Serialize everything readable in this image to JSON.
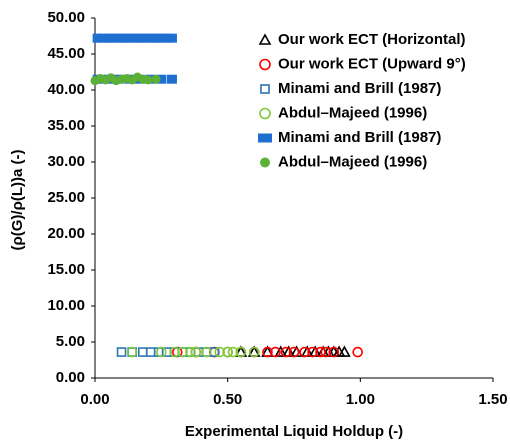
{
  "chart_data": {
    "type": "scatter",
    "x_label": "Experimental Liquid Holdup (-)",
    "y_label": "(ρ(G)/ρ(L))a (-)",
    "xlim": [
      0,
      1.5
    ],
    "ylim": [
      0,
      50
    ],
    "xticks": [
      {
        "value": 0,
        "label": "0.00"
      },
      {
        "value": 0.5,
        "label": "0.50"
      },
      {
        "value": 1,
        "label": "1.00"
      },
      {
        "value": 1.5,
        "label": "1.50"
      }
    ],
    "yticks": [
      {
        "value": 0,
        "label": "0.00"
      },
      {
        "value": 5,
        "label": "5.00"
      },
      {
        "value": 10,
        "label": "10.00"
      },
      {
        "value": 15,
        "label": "15.00"
      },
      {
        "value": 20,
        "label": "20.00"
      },
      {
        "value": 25,
        "label": "25.00"
      },
      {
        "value": 30,
        "label": "30.00"
      },
      {
        "value": 35,
        "label": "35.00"
      },
      {
        "value": 40,
        "label": "40.00"
      },
      {
        "value": 45,
        "label": "45.00"
      },
      {
        "value": 50,
        "label": "50.00"
      }
    ],
    "series": [
      {
        "name": "Our work ECT (Horizontal)",
        "color": "#000000",
        "marker": "triangle",
        "filled": false,
        "x": [
          0.55,
          0.6,
          0.65,
          0.7,
          0.73,
          0.76,
          0.8,
          0.83,
          0.86,
          0.88,
          0.9,
          0.92,
          0.94
        ],
        "values": [
          3.6,
          3.6,
          3.6,
          3.6,
          3.6,
          3.6,
          3.6,
          3.6,
          3.6,
          3.6,
          3.6,
          3.6,
          3.6
        ]
      },
      {
        "name": "Our work ECT (Upward 9°)",
        "color": "#ff0000",
        "marker": "circle",
        "filled": false,
        "x": [
          0.31,
          0.38,
          0.45,
          0.5,
          0.55,
          0.6,
          0.65,
          0.68,
          0.72,
          0.75,
          0.79,
          0.82,
          0.85,
          0.87,
          0.9,
          0.99
        ],
        "values": [
          3.6,
          3.6,
          3.6,
          3.6,
          3.6,
          3.6,
          3.6,
          3.6,
          3.6,
          3.6,
          3.6,
          3.6,
          3.6,
          3.6,
          3.6,
          3.6
        ]
      },
      {
        "name": "Minami and Brill (1987)",
        "color": "#2e75b6",
        "marker": "square",
        "filled": false,
        "x": [
          0.1,
          0.14,
          0.18,
          0.21,
          0.24,
          0.27,
          0.3,
          0.33,
          0.36,
          0.39,
          0.42,
          0.45
        ],
        "values": [
          3.6,
          3.6,
          3.6,
          3.6,
          3.6,
          3.6,
          3.6,
          3.6,
          3.6,
          3.6,
          3.6,
          3.6
        ]
      },
      {
        "name": "Abdul–Majeed (1996)",
        "color": "#7dcc3a",
        "marker": "circle",
        "filled": false,
        "x": [
          0.14,
          0.25,
          0.3,
          0.33,
          0.36,
          0.38,
          0.42,
          0.47,
          0.5,
          0.52,
          0.55,
          0.6
        ],
        "values": [
          3.6,
          3.6,
          3.6,
          3.6,
          3.6,
          3.6,
          3.6,
          3.6,
          3.6,
          3.6,
          3.6,
          3.6
        ]
      },
      {
        "name": "Minami and Brill (1987)",
        "color": "#1f6fd0",
        "marker": "square",
        "filled": true,
        "x": [
          0.01,
          0.03,
          0.05,
          0.07,
          0.09,
          0.11,
          0.13,
          0.15,
          0.17,
          0.19,
          0.21,
          0.23,
          0.25,
          0.27,
          0.29,
          0.01,
          0.05,
          0.09,
          0.13,
          0.17,
          0.21,
          0.25,
          0.29
        ],
        "values": [
          47.2,
          47.2,
          47.2,
          47.2,
          47.2,
          47.2,
          47.2,
          47.2,
          47.2,
          47.2,
          47.2,
          47.2,
          47.2,
          47.2,
          47.2,
          41.5,
          41.5,
          41.5,
          41.5,
          41.5,
          41.5,
          41.5,
          41.5
        ]
      },
      {
        "name": "Abdul–Majeed (1996)",
        "color": "#5bb035",
        "marker": "circle",
        "filled": true,
        "x": [
          0.0,
          0.02,
          0.04,
          0.06,
          0.08,
          0.1,
          0.12,
          0.14,
          0.16,
          0.18,
          0.2,
          0.23
        ],
        "values": [
          41.3,
          41.6,
          41.4,
          41.7,
          41.3,
          41.5,
          41.6,
          41.4,
          41.8,
          41.5,
          41.4,
          41.5
        ]
      }
    ]
  }
}
